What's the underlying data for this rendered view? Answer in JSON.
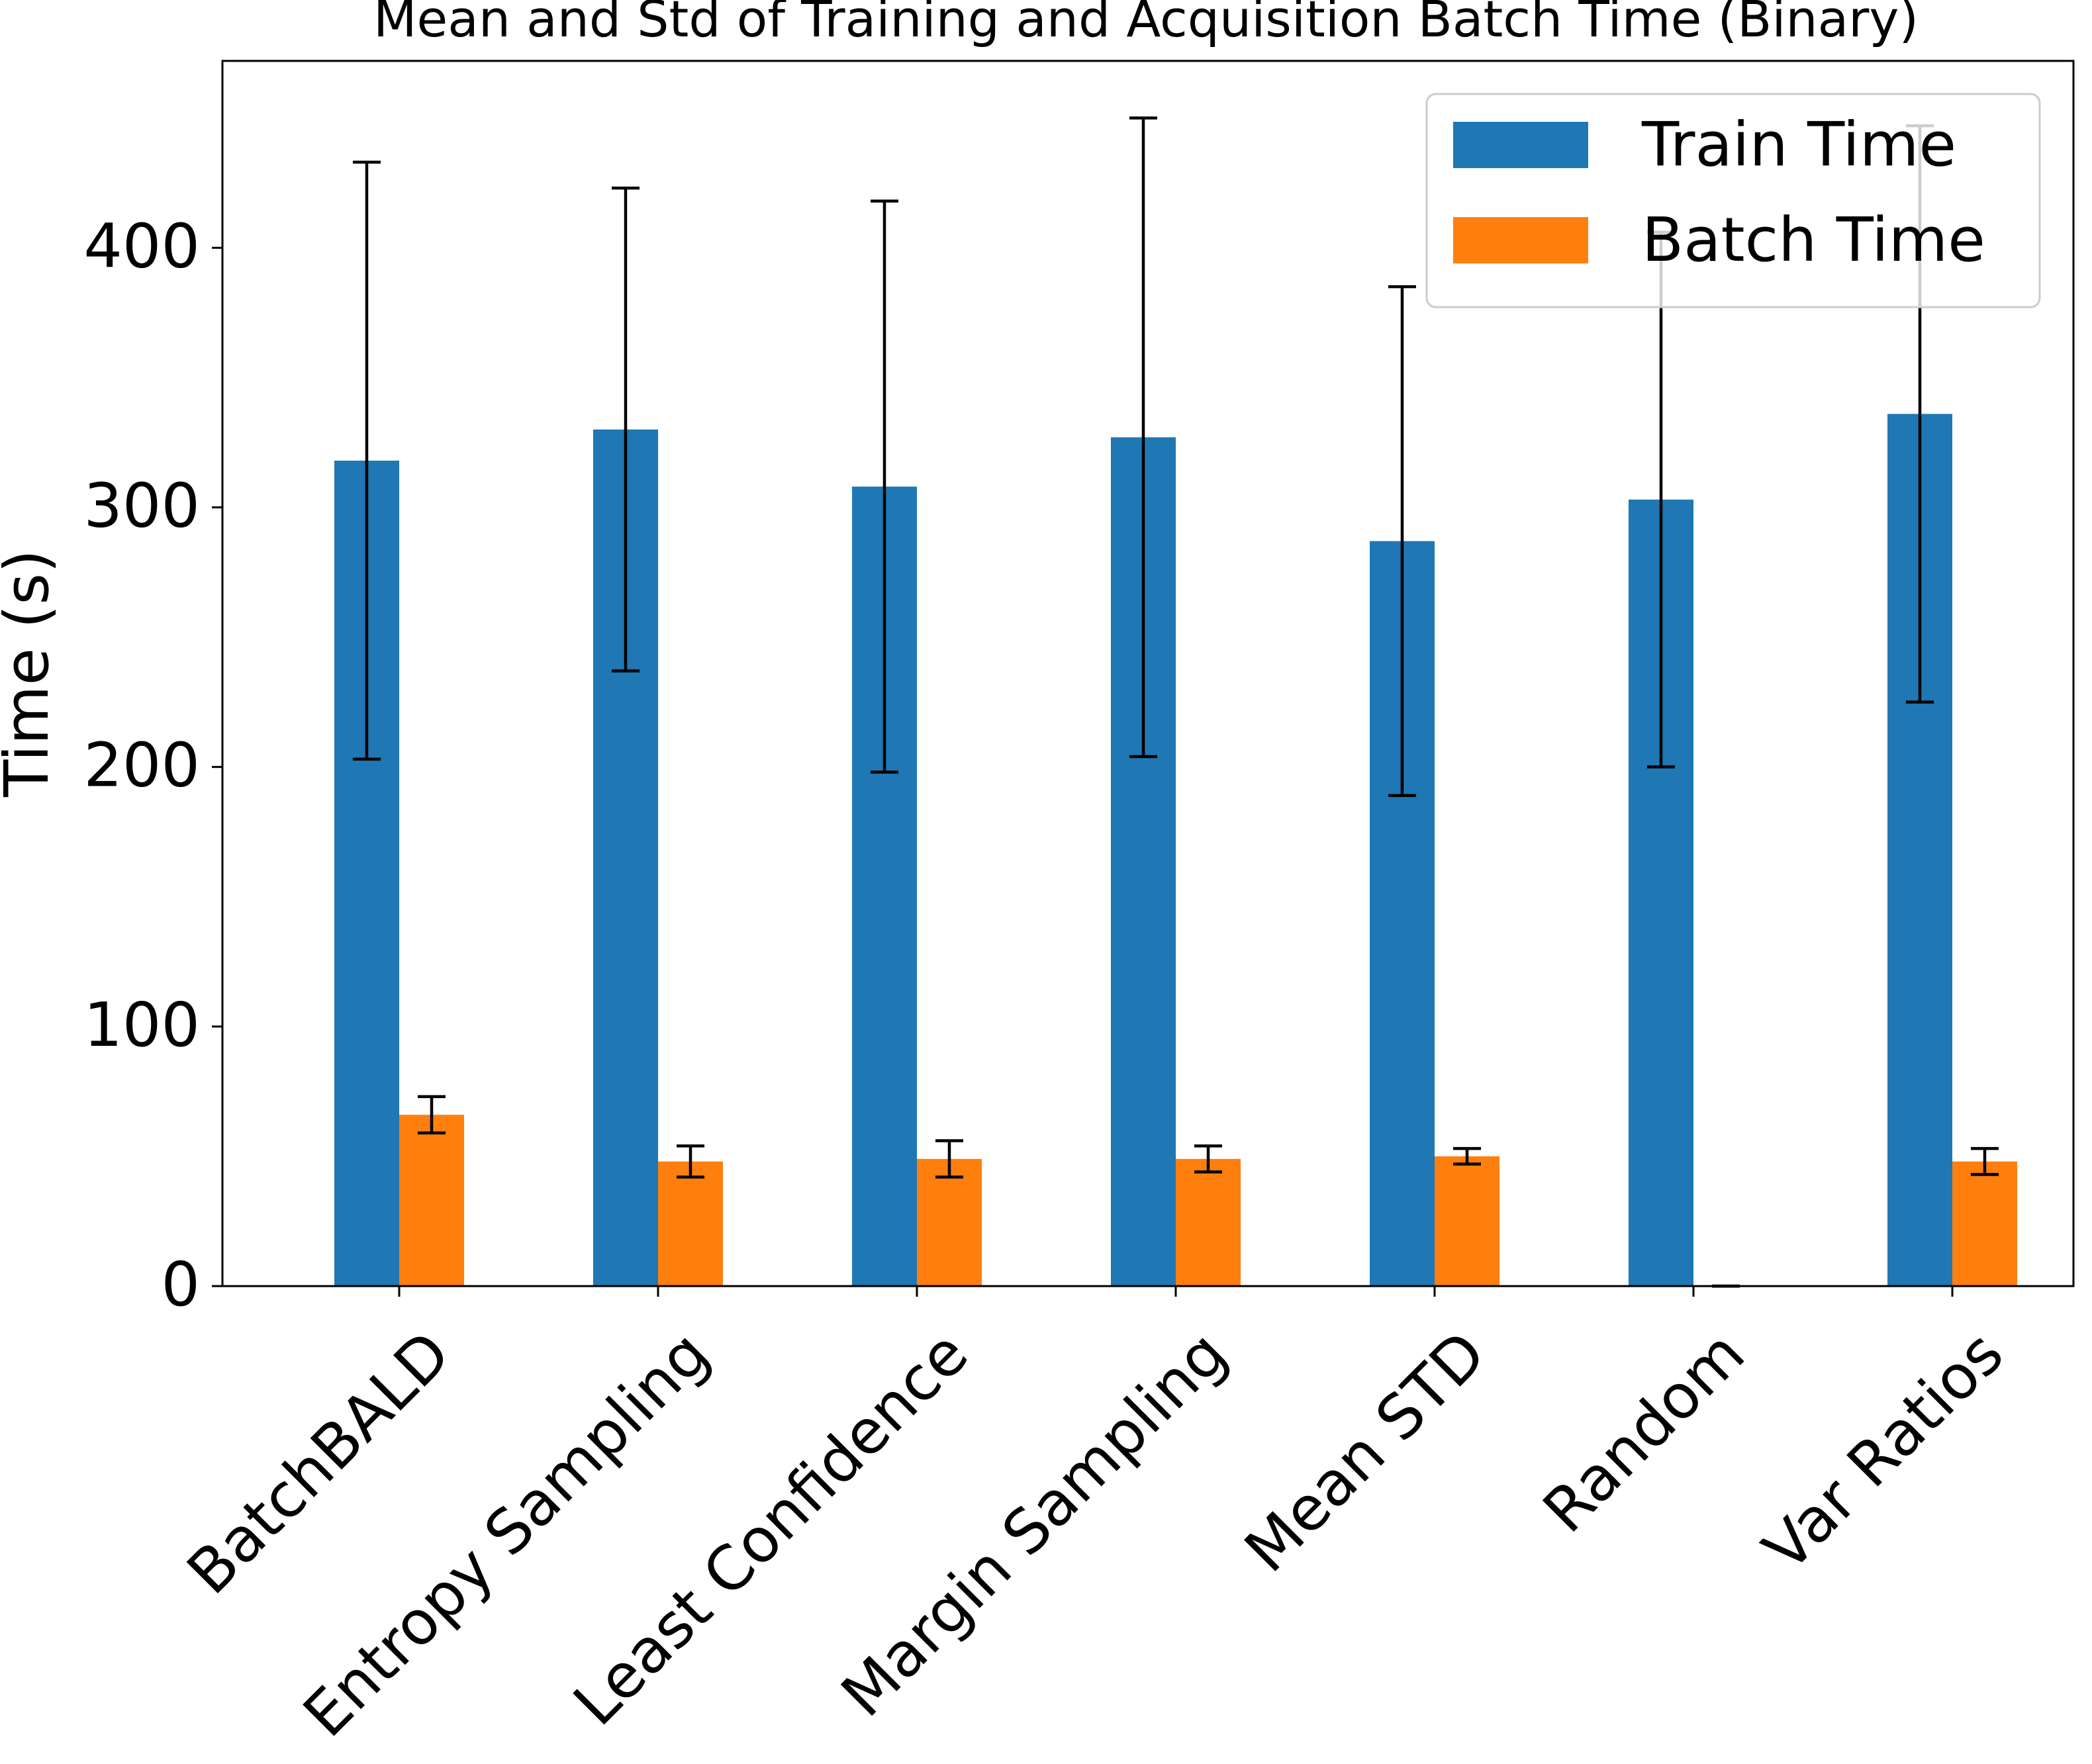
{
  "chart_data": {
    "type": "bar",
    "title": "Mean and Std of Training and Acquisition Batch Time (Binary)",
    "xlabel": "",
    "ylabel": "Time (s)",
    "ylim": [
      0,
      472
    ],
    "yticks": [
      0,
      100,
      200,
      300,
      400
    ],
    "categories": [
      "BatchBALD",
      "Entropy Sampling",
      "Least Confidence",
      "Margin Sampling",
      "Mean STD",
      "Random",
      "Var Ratios"
    ],
    "series": [
      {
        "name": "Train Time",
        "color": "#1f77b4",
        "values": [
          318,
          330,
          308,
          327,
          287,
          303,
          336
        ],
        "errors": [
          115,
          93,
          110,
          123,
          98,
          103,
          111
        ]
      },
      {
        "name": "Batch Time",
        "color": "#ff7f0e",
        "values": [
          66,
          48,
          49,
          49,
          50,
          0,
          48
        ],
        "errors": [
          7,
          6,
          7,
          5,
          3,
          0,
          5
        ]
      }
    ],
    "legend": {
      "position": "top-right"
    },
    "grid": false
  }
}
